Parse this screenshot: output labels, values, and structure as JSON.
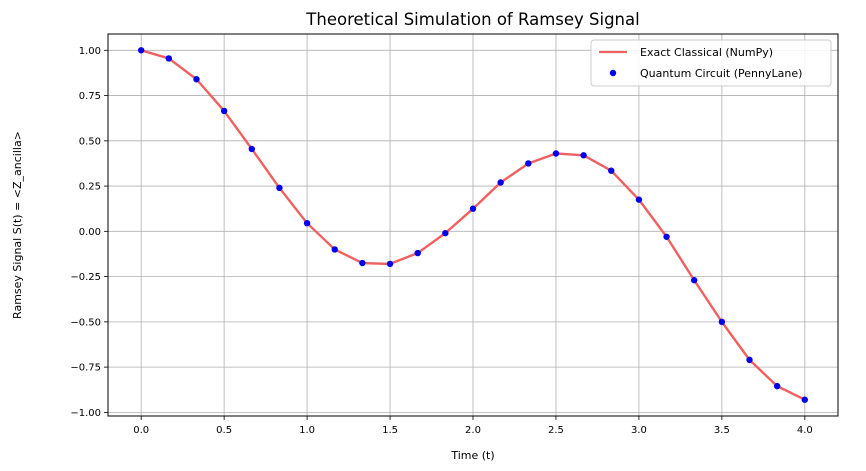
{
  "chart_data": {
    "type": "line",
    "title": "Theoretical Simulation of Ramsey Signal",
    "xlabel": "Time (t)",
    "ylabel": "Ramsey Signal S(t) = <Z_ancilla>",
    "xlim": [
      -0.2,
      4.2
    ],
    "ylim": [
      -1.02,
      1.09
    ],
    "xticks": [
      0.0,
      0.5,
      1.0,
      1.5,
      2.0,
      2.5,
      3.0,
      3.5,
      4.0
    ],
    "xtick_labels": [
      "0.0",
      "0.5",
      "1.0",
      "1.5",
      "2.0",
      "2.5",
      "3.0",
      "3.5",
      "4.0"
    ],
    "yticks": [
      -1.0,
      -0.75,
      -0.5,
      -0.25,
      0.0,
      0.25,
      0.5,
      0.75,
      1.0
    ],
    "ytick_labels": [
      "−1.00",
      "−0.75",
      "−0.50",
      "−0.25",
      "0.00",
      "0.25",
      "0.50",
      "0.75",
      "1.00"
    ],
    "grid": true,
    "legend_position": "top-right",
    "x": [
      0.0,
      0.1667,
      0.3333,
      0.5,
      0.6667,
      0.8333,
      1.0,
      1.1667,
      1.3333,
      1.5,
      1.6667,
      1.8333,
      2.0,
      2.1667,
      2.3333,
      2.5,
      2.6667,
      2.8333,
      3.0,
      3.1667,
      3.3333,
      3.5,
      3.6667,
      3.8333,
      4.0
    ],
    "series": [
      {
        "name": "Exact Classical (NumPy)",
        "style": "line",
        "color": "#f06060",
        "values": [
          1.0,
          0.955,
          0.84,
          0.665,
          0.455,
          0.24,
          0.045,
          -0.1,
          -0.175,
          -0.18,
          -0.12,
          -0.01,
          0.125,
          0.27,
          0.375,
          0.43,
          0.42,
          0.335,
          0.175,
          -0.03,
          -0.27,
          -0.5,
          -0.71,
          -0.855,
          -0.93
        ]
      },
      {
        "name": "Quantum Circuit (PennyLane)",
        "style": "marker",
        "color": "#0000ee",
        "values": [
          1.0,
          0.955,
          0.84,
          0.665,
          0.455,
          0.24,
          0.045,
          -0.1,
          -0.175,
          -0.18,
          -0.12,
          -0.01,
          0.125,
          0.27,
          0.375,
          0.43,
          0.42,
          0.335,
          0.175,
          -0.03,
          -0.27,
          -0.5,
          -0.71,
          -0.855,
          -0.93
        ]
      }
    ]
  }
}
